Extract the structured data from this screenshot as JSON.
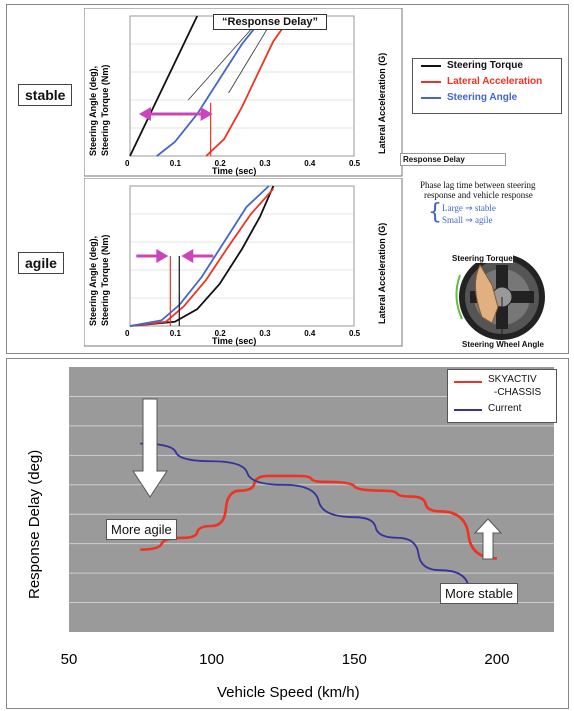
{
  "top": {
    "row_labels": {
      "stable": "stable",
      "agile": "agile"
    },
    "response_delay_title": "“Response Delay”",
    "y_label_left": [
      "Steering Angle (deg),",
      "Steering Torque (Nm)"
    ],
    "y_label_right": "Lateral Acceleration (G)",
    "x_label": "Time (sec)",
    "x_ticks": [
      "0",
      "0.1",
      "0.2",
      "0.3",
      "0.4",
      "0.5"
    ],
    "legend": {
      "torque": "Steering Torque",
      "lateral": "Lateral Acceleration",
      "angle": "Steering Angle"
    },
    "side_box_label": "Response Delay",
    "phase_lag_line1": "Phase lag time  between steering",
    "phase_lag_line2": "response and vehicle response",
    "large_stable": "Large ⇒ stable",
    "small_agile": "Small ⇒ agile",
    "wheel_torque_label": "Steering Torque",
    "wheel_angle_label": "Steering Wheel Angle",
    "colors": {
      "torque": "#111111",
      "lateral": "#ee3322",
      "angle": "#4466cc",
      "arrow": "#cc44bb"
    }
  },
  "chart_data": [
    {
      "type": "line",
      "title": "stable",
      "xlabel": "Time (sec)",
      "ylabel": "Steering Angle (deg), Steering Torque (Nm)",
      "y2label": "Lateral Acceleration (G)",
      "xlim": [
        0,
        0.5
      ],
      "series": [
        {
          "name": "Steering Torque",
          "x": [
            0.0,
            0.03,
            0.06,
            0.09,
            0.12,
            0.15
          ],
          "y": [
            0.0,
            0.2,
            0.4,
            0.6,
            0.8,
            1.0
          ]
        },
        {
          "name": "Lateral Acceleration",
          "x": [
            0.17,
            0.21,
            0.25,
            0.29,
            0.32,
            0.36
          ],
          "y": [
            0.0,
            0.12,
            0.35,
            0.62,
            0.82,
            1.0
          ]
        },
        {
          "name": "Steering Angle",
          "x": [
            0.06,
            0.1,
            0.15,
            0.2,
            0.25,
            0.3
          ],
          "y": [
            0.0,
            0.1,
            0.3,
            0.55,
            0.8,
            1.0
          ]
        }
      ],
      "annotation": "“Response Delay”",
      "delay_marker_x": [
        0.02,
        0.18
      ]
    },
    {
      "type": "line",
      "title": "agile",
      "xlabel": "Time (sec)",
      "ylabel": "Steering Angle (deg), Steering Torque (Nm)",
      "y2label": "Lateral Acceleration (G)",
      "xlim": [
        0,
        0.5
      ],
      "series": [
        {
          "name": "Steering Torque",
          "x": [
            0.0,
            0.1,
            0.15,
            0.2,
            0.25,
            0.29,
            0.32
          ],
          "y": [
            0.0,
            0.03,
            0.12,
            0.3,
            0.55,
            0.78,
            1.0
          ]
        },
        {
          "name": "Lateral Acceleration",
          "x": [
            0.0,
            0.08,
            0.12,
            0.17,
            0.22,
            0.27,
            0.32
          ],
          "y": [
            0.0,
            0.03,
            0.14,
            0.33,
            0.57,
            0.8,
            0.98
          ]
        },
        {
          "name": "Steering Angle",
          "x": [
            0.0,
            0.07,
            0.11,
            0.16,
            0.21,
            0.26,
            0.31
          ],
          "y": [
            0.0,
            0.04,
            0.15,
            0.35,
            0.6,
            0.85,
            1.0
          ]
        }
      ],
      "delay_marker_x": [
        0.09,
        0.11
      ]
    },
    {
      "type": "line",
      "title": "",
      "xlabel": "Vehicle Speed (km/h)",
      "ylabel": "Response Delay (deg)",
      "xlim": [
        50,
        220
      ],
      "ylim": [
        0,
        9
      ],
      "x_ticks": [
        "50",
        "100",
        "150",
        "200"
      ],
      "series": [
        {
          "name": "SKYACTIV -CHASSIS",
          "x": [
            75,
            90,
            100,
            110,
            120,
            130,
            140,
            160,
            170,
            180,
            200
          ],
          "y": [
            2.8,
            3.2,
            3.6,
            4.8,
            5.3,
            5.3,
            5.1,
            4.8,
            4.6,
            4.1,
            2.5
          ]
        },
        {
          "name": "Current",
          "x": [
            75,
            100,
            125,
            150,
            165,
            180,
            200
          ],
          "y": [
            6.4,
            5.8,
            5.0,
            3.9,
            3.2,
            2.1,
            1.0
          ]
        }
      ],
      "annotations": [
        "More agile",
        "More stable"
      ]
    }
  ],
  "bottom": {
    "legend": {
      "sky_line1": "SKYACTIV",
      "sky_line2": "-CHASSIS",
      "current": "Current"
    },
    "colors": {
      "skyactiv": "#ee3322",
      "current": "#333399",
      "plot_bg": "#9a9a9a",
      "grid": "#cfcfcf"
    }
  }
}
